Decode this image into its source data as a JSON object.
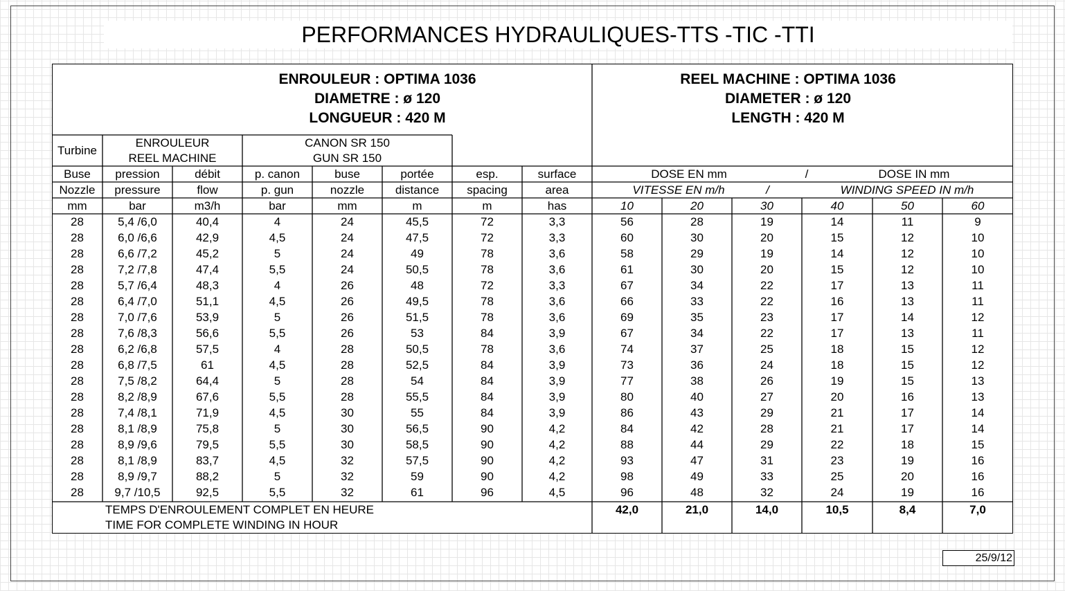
{
  "title": "PERFORMANCES HYDRAULIQUES-TTS -TIC -TTI",
  "header_fr": [
    "ENROULEUR : OPTIMA 1036",
    "DIAMETRE : ø 120",
    "LONGUEUR : 420 M"
  ],
  "header_en": [
    "REEL MACHINE : OPTIMA 1036",
    "DIAMETER : ø 120",
    "LENGTH : 420 M"
  ],
  "groups": {
    "turbine": "Turbine",
    "reel_fr": "ENROULEUR",
    "reel_en": "REEL MACHINE",
    "gun_fr": "CANON SR 150",
    "gun_en": "GUN SR 150"
  },
  "columns_fr": [
    "Buse",
    "pression",
    "débit",
    "p. canon",
    "buse",
    "portée",
    "esp.",
    "surface"
  ],
  "dose_fr": [
    "DOSE EN mm",
    "/",
    "DOSE IN mm"
  ],
  "columns_en": [
    "Nozzle",
    "pressure",
    "flow",
    "p. gun",
    "nozzle",
    "distance",
    "spacing",
    "area"
  ],
  "speed_en": [
    "VITESSE EN m/h",
    "/",
    "WINDING SPEED IN m/h"
  ],
  "units": [
    "mm",
    "bar",
    "m3/h",
    "bar",
    "mm",
    "m",
    "m",
    "has"
  ],
  "speeds": [
    10,
    20,
    30,
    40,
    50,
    60
  ],
  "rows": [
    [
      28,
      "5,4 /6,0",
      "40,4",
      4,
      24,
      "45,5",
      72,
      "3,3",
      56,
      28,
      19,
      14,
      11,
      9
    ],
    [
      28,
      "6,0 /6,6",
      "42,9",
      "4,5",
      24,
      "47,5",
      72,
      "3,3",
      60,
      30,
      20,
      15,
      12,
      10
    ],
    [
      28,
      "6,6 /7,2",
      "45,2",
      5,
      24,
      49,
      78,
      "3,6",
      58,
      29,
      19,
      14,
      12,
      10
    ],
    [
      28,
      "7,2 /7,8",
      "47,4",
      "5,5",
      24,
      "50,5",
      78,
      "3,6",
      61,
      30,
      20,
      15,
      12,
      10
    ],
    [
      28,
      "5,7 /6,4",
      "48,3",
      4,
      26,
      48,
      72,
      "3,3",
      67,
      34,
      22,
      17,
      13,
      11
    ],
    [
      28,
      "6,4 /7,0",
      "51,1",
      "4,5",
      26,
      "49,5",
      78,
      "3,6",
      66,
      33,
      22,
      16,
      13,
      11
    ],
    [
      28,
      "7,0 /7,6",
      "53,9",
      5,
      26,
      "51,5",
      78,
      "3,6",
      69,
      35,
      23,
      17,
      14,
      12
    ],
    [
      28,
      "7,6 /8,3",
      "56,6",
      "5,5",
      26,
      53,
      84,
      "3,9",
      67,
      34,
      22,
      17,
      13,
      11
    ],
    [
      28,
      "6,2 /6,8",
      "57,5",
      4,
      28,
      "50,5",
      78,
      "3,6",
      74,
      37,
      25,
      18,
      15,
      12
    ],
    [
      28,
      "6,8 /7,5",
      61,
      "4,5",
      28,
      "52,5",
      84,
      "3,9",
      73,
      36,
      24,
      18,
      15,
      12
    ],
    [
      28,
      "7,5 /8,2",
      "64,4",
      5,
      28,
      54,
      84,
      "3,9",
      77,
      38,
      26,
      19,
      15,
      13
    ],
    [
      28,
      "8,2 /8,9",
      "67,6",
      "5,5",
      28,
      "55,5",
      84,
      "3,9",
      80,
      40,
      27,
      20,
      16,
      13
    ],
    [
      28,
      "7,4 /8,1",
      "71,9",
      "4,5",
      30,
      55,
      84,
      "3,9",
      86,
      43,
      29,
      21,
      17,
      14
    ],
    [
      28,
      "8,1 /8,9",
      "75,8",
      5,
      30,
      "56,5",
      90,
      "4,2",
      84,
      42,
      28,
      21,
      17,
      14
    ],
    [
      28,
      "8,9 /9,6",
      "79,5",
      "5,5",
      30,
      "58,5",
      90,
      "4,2",
      88,
      44,
      29,
      22,
      18,
      15
    ],
    [
      28,
      "8,1 /8,9",
      "83,7",
      "4,5",
      32,
      "57,5",
      90,
      "4,2",
      93,
      47,
      31,
      23,
      19,
      16
    ],
    [
      28,
      "8,9 /9,7",
      "88,2",
      5,
      32,
      59,
      90,
      "4,2",
      98,
      49,
      33,
      25,
      20,
      16
    ],
    [
      28,
      "9,7 /10,5",
      "92,5",
      "5,5",
      32,
      61,
      96,
      "4,5",
      96,
      48,
      32,
      24,
      19,
      16
    ]
  ],
  "footer": {
    "label_fr": "TEMPS D'ENROULEMENT COMPLET EN HEURE",
    "label_en": "TIME FOR COMPLETE WINDING IN HOUR",
    "times": [
      "42,0",
      "21,0",
      "14,0",
      "10,5",
      "8,4",
      "7,0"
    ]
  },
  "date": "25/9/12"
}
